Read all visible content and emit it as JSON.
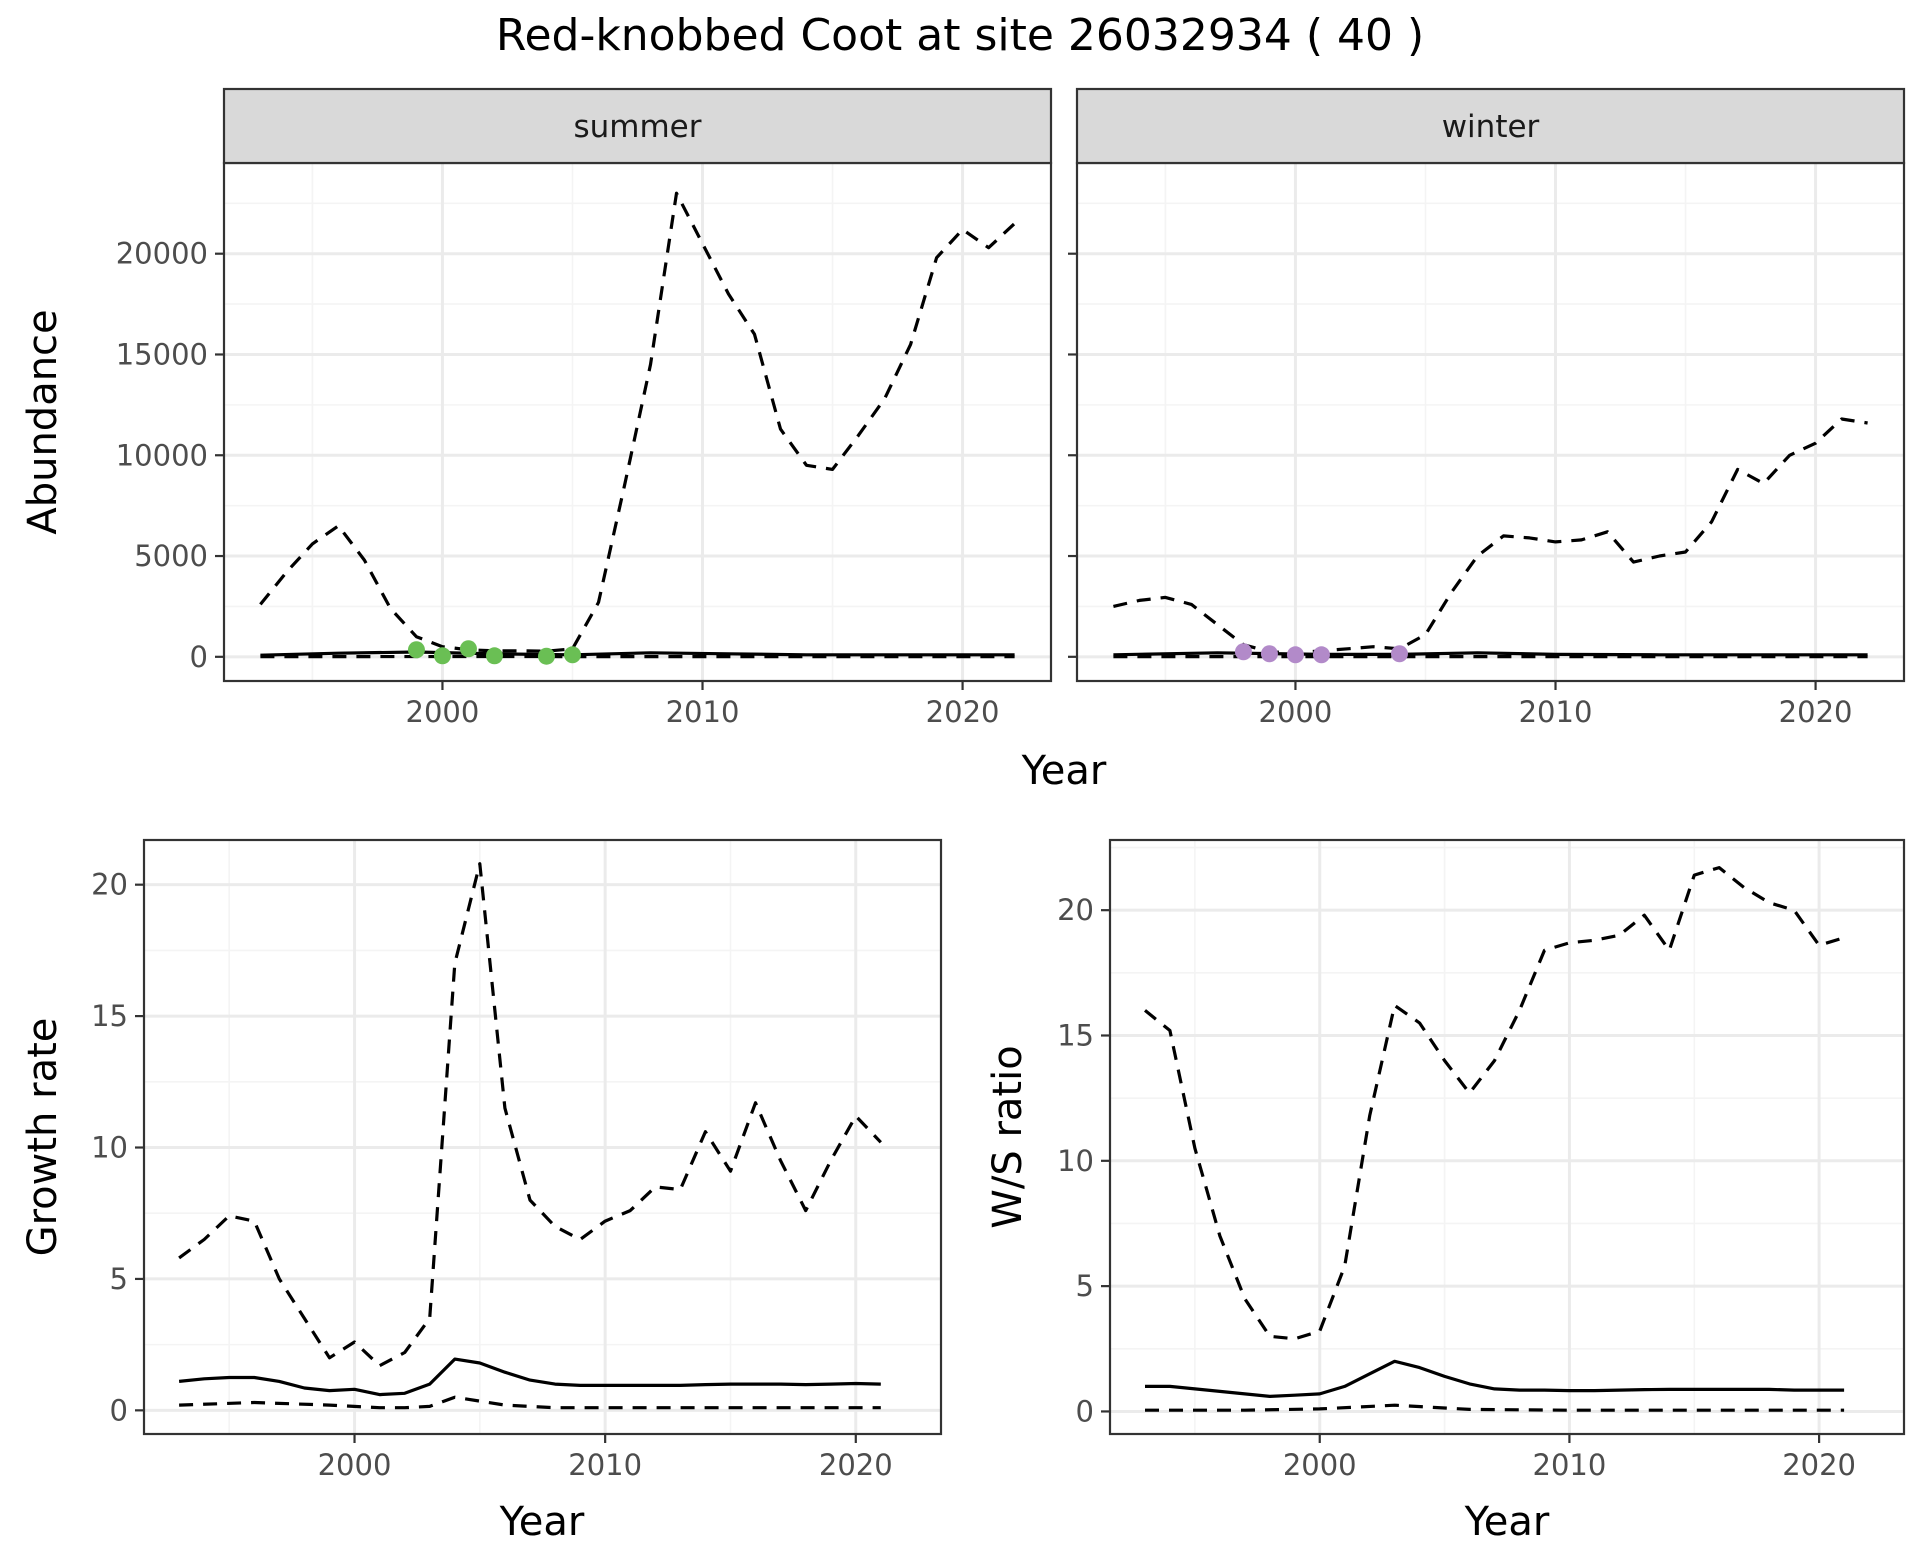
{
  "title": "Red-knobbed Coot at site 26032934 ( 40 )",
  "colors": {
    "summer_points": "#6abf54",
    "winter_points": "#b28ac9",
    "strip_fill": "#d9d9d9",
    "grid_major": "#ebebeb",
    "grid_minor": "#f4f4f4",
    "line": "#000000"
  },
  "chart_data": [
    {
      "id": "abundance-summer",
      "type": "line",
      "facet_label": "summer",
      "xlabel": "Year",
      "ylabel": "Abundance",
      "xlim": [
        1991.6,
        2023.4
      ],
      "ylim": [
        -1200,
        24500
      ],
      "x_ticks": [
        2000,
        2010,
        2020
      ],
      "y_ticks": [
        0,
        5000,
        10000,
        15000,
        20000
      ],
      "series": [
        {
          "name": "median",
          "style": "solid",
          "x": [
            1993,
            1996,
            1999,
            2002,
            2005,
            2008,
            2011,
            2014,
            2017,
            2020,
            2022
          ],
          "values": [
            80,
            180,
            240,
            150,
            100,
            200,
            150,
            100,
            100,
            100,
            100
          ]
        },
        {
          "name": "lower",
          "style": "dashed",
          "x": [
            1993,
            1997,
            2001,
            2005,
            2009,
            2013,
            2017,
            2022
          ],
          "values": [
            5,
            10,
            15,
            10,
            10,
            10,
            10,
            10
          ]
        },
        {
          "name": "upper",
          "style": "dashed",
          "x": [
            1993,
            1994,
            1995,
            1996,
            1997,
            1998,
            1999,
            2000,
            2001,
            2002,
            2003,
            2004,
            2005,
            2006,
            2007,
            2008,
            2009,
            2010,
            2011,
            2012,
            2013,
            2014,
            2015,
            2016,
            2017,
            2018,
            2019,
            2020,
            2021,
            2022
          ],
          "values": [
            2600,
            4200,
            5600,
            6500,
            4800,
            2400,
            1000,
            500,
            350,
            300,
            300,
            280,
            400,
            2700,
            8500,
            14500,
            23000,
            20500,
            18000,
            16000,
            11300,
            9500,
            9300,
            11000,
            12800,
            15500,
            19800,
            21200,
            20300,
            21500
          ]
        }
      ],
      "points": {
        "x": [
          1999,
          2000,
          2001,
          2002,
          2004,
          2005
        ],
        "values": [
          350,
          50,
          400,
          50,
          30,
          100
        ]
      }
    },
    {
      "id": "abundance-winter",
      "type": "line",
      "facet_label": "winter",
      "xlabel": "Year",
      "ylabel": "Abundance",
      "xlim": [
        1991.6,
        2023.4
      ],
      "ylim": [
        -1200,
        24500
      ],
      "x_ticks": [
        2000,
        2010,
        2020
      ],
      "y_ticks": [
        0,
        5000,
        10000,
        15000,
        20000
      ],
      "series": [
        {
          "name": "median",
          "style": "solid",
          "x": [
            1993,
            1997,
            2001,
            2004,
            2007,
            2010,
            2014,
            2018,
            2022
          ],
          "values": [
            100,
            200,
            120,
            120,
            200,
            120,
            100,
            100,
            100
          ]
        },
        {
          "name": "lower",
          "style": "dashed",
          "x": [
            1993,
            1998,
            2003,
            2008,
            2013,
            2018,
            2022
          ],
          "values": [
            5,
            10,
            10,
            10,
            10,
            10,
            10
          ]
        },
        {
          "name": "upper",
          "style": "dashed",
          "x": [
            1993,
            1994,
            1995,
            1996,
            1997,
            1998,
            1999,
            2000,
            2001,
            2002,
            2003,
            2004,
            2005,
            2006,
            2007,
            2008,
            2009,
            2010,
            2011,
            2012,
            2013,
            2014,
            2015,
            2016,
            2017,
            2018,
            2019,
            2020,
            2021,
            2022
          ],
          "values": [
            2500,
            2800,
            2950,
            2600,
            1600,
            600,
            250,
            200,
            300,
            400,
            500,
            400,
            1100,
            3200,
            5000,
            6000,
            5900,
            5700,
            5800,
            6200,
            4700,
            5000,
            5200,
            6700,
            9300,
            8600,
            10000,
            10600,
            11800,
            11600
          ]
        }
      ],
      "points": {
        "x": [
          1998,
          1999,
          2000,
          2001,
          2004
        ],
        "values": [
          250,
          150,
          100,
          100,
          150
        ]
      }
    },
    {
      "id": "growth-rate",
      "type": "line",
      "xlabel": "Year",
      "ylabel": "Growth rate",
      "xlim": [
        1991.6,
        2023.4
      ],
      "ylim": [
        -0.9,
        21.7
      ],
      "x_ticks": [
        2000,
        2010,
        2020
      ],
      "y_ticks": [
        0,
        5,
        10,
        15,
        20
      ],
      "series": [
        {
          "name": "median",
          "style": "solid",
          "x": [
            1993,
            1994,
            1995,
            1996,
            1997,
            1998,
            1999,
            2000,
            2001,
            2002,
            2003,
            2004,
            2005,
            2006,
            2007,
            2008,
            2009,
            2010,
            2011,
            2012,
            2013,
            2014,
            2015,
            2016,
            2017,
            2018,
            2019,
            2020,
            2021
          ],
          "values": [
            1.1,
            1.2,
            1.25,
            1.25,
            1.1,
            0.85,
            0.75,
            0.8,
            0.6,
            0.65,
            1.0,
            1.95,
            1.8,
            1.45,
            1.15,
            1.0,
            0.95,
            0.95,
            0.95,
            0.95,
            0.95,
            0.98,
            1.0,
            1.0,
            1.0,
            0.98,
            1.0,
            1.02,
            1.0
          ]
        },
        {
          "name": "lower",
          "style": "dashed",
          "x": [
            1993,
            1996,
            1999,
            2001,
            2002,
            2003,
            2004,
            2006,
            2008,
            2012,
            2016,
            2021
          ],
          "values": [
            0.2,
            0.3,
            0.2,
            0.1,
            0.1,
            0.15,
            0.5,
            0.2,
            0.1,
            0.1,
            0.1,
            0.1
          ]
        },
        {
          "name": "upper",
          "style": "dashed",
          "x": [
            1993,
            1994,
            1995,
            1996,
            1997,
            1998,
            1999,
            2000,
            2001,
            2002,
            2003,
            2004,
            2005,
            2006,
            2007,
            2008,
            2009,
            2010,
            2011,
            2012,
            2013,
            2014,
            2015,
            2016,
            2017,
            2018,
            2019,
            2020,
            2021
          ],
          "values": [
            5.8,
            6.5,
            7.4,
            7.2,
            5.0,
            3.5,
            2.0,
            2.6,
            1.7,
            2.2,
            3.5,
            17.0,
            20.8,
            11.5,
            8.0,
            7.0,
            6.5,
            7.2,
            7.6,
            8.5,
            8.4,
            10.6,
            9.1,
            11.7,
            9.5,
            7.6,
            9.5,
            11.2,
            10.2
          ]
        }
      ]
    },
    {
      "id": "ws-ratio",
      "type": "line",
      "xlabel": "Year",
      "ylabel": "W/S ratio",
      "xlim": [
        1991.6,
        2023.4
      ],
      "ylim": [
        -0.9,
        22.8
      ],
      "x_ticks": [
        2000,
        2010,
        2020
      ],
      "y_ticks": [
        0,
        5,
        10,
        15,
        20
      ],
      "series": [
        {
          "name": "median",
          "style": "solid",
          "x": [
            1993,
            1994,
            1995,
            1996,
            1997,
            1998,
            1999,
            2000,
            2001,
            2002,
            2003,
            2004,
            2005,
            2006,
            2007,
            2008,
            2009,
            2010,
            2011,
            2012,
            2013,
            2014,
            2015,
            2016,
            2017,
            2018,
            2019,
            2020,
            2021
          ],
          "values": [
            1.0,
            1.0,
            0.9,
            0.8,
            0.7,
            0.6,
            0.65,
            0.7,
            1.0,
            1.5,
            2.0,
            1.75,
            1.4,
            1.1,
            0.9,
            0.85,
            0.85,
            0.83,
            0.83,
            0.85,
            0.87,
            0.88,
            0.88,
            0.88,
            0.88,
            0.88,
            0.85,
            0.85,
            0.85
          ]
        },
        {
          "name": "lower",
          "style": "dashed",
          "x": [
            1993,
            1997,
            2000,
            2003,
            2006,
            2010,
            2015,
            2021
          ],
          "values": [
            0.05,
            0.05,
            0.1,
            0.25,
            0.08,
            0.05,
            0.05,
            0.05
          ]
        },
        {
          "name": "upper",
          "style": "dashed",
          "x": [
            1993,
            1994,
            1995,
            1996,
            1997,
            1998,
            1999,
            2000,
            2001,
            2002,
            2003,
            2004,
            2005,
            2006,
            2007,
            2008,
            2009,
            2010,
            2011,
            2012,
            2013,
            2014,
            2015,
            2016,
            2017,
            2018,
            2019,
            2020,
            2021
          ],
          "values": [
            16.0,
            15.2,
            10.5,
            7.0,
            4.5,
            3.0,
            2.9,
            3.2,
            5.8,
            11.8,
            16.2,
            15.5,
            14.0,
            12.7,
            14.0,
            16.0,
            18.4,
            18.7,
            18.8,
            19.0,
            19.8,
            18.4,
            21.4,
            21.7,
            20.9,
            20.3,
            20.0,
            18.6,
            18.9
          ]
        }
      ]
    }
  ]
}
